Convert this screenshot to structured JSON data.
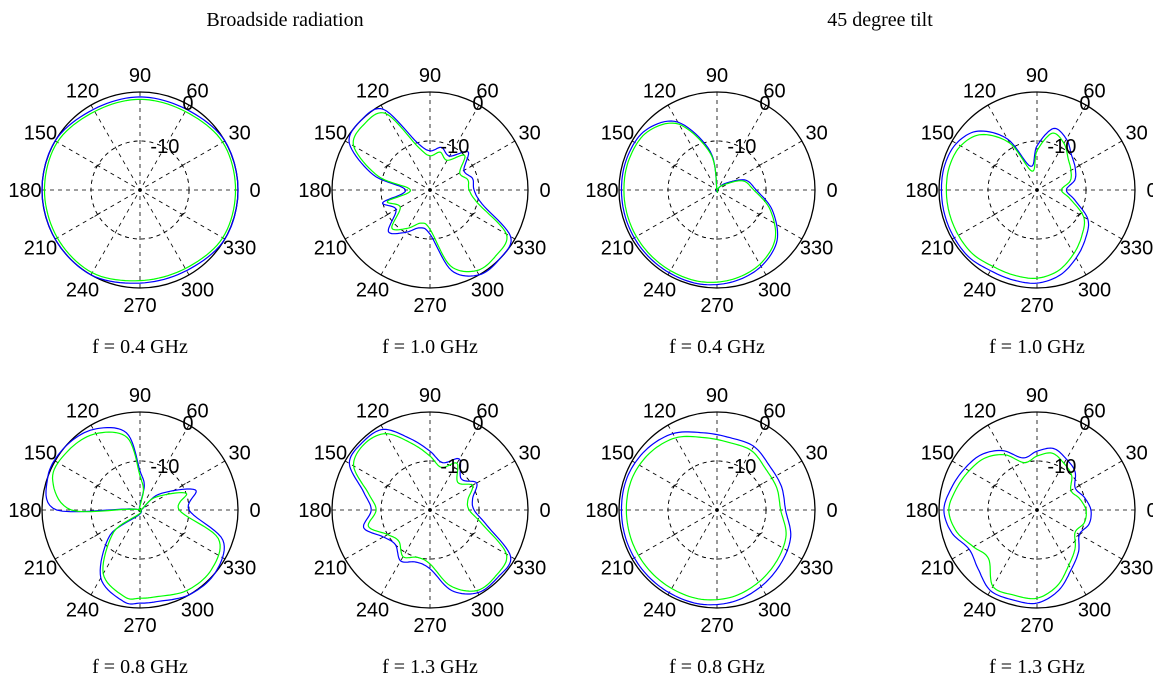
{
  "group_titles": {
    "broadside": "Broadside radiation",
    "tilt": "45 degree tilt"
  },
  "chart_data": [
    {
      "type": "polar",
      "caption": "f = 0.4 GHz",
      "angle_labels": [
        "0",
        "30",
        "60",
        "90",
        "120",
        "150",
        "180",
        "210",
        "240",
        "270",
        "300",
        "330"
      ],
      "radial_labels": [
        "-10",
        "0"
      ],
      "rlim": [
        -20,
        0
      ],
      "grid": true,
      "series": [
        {
          "color": "#0000ff",
          "angles": [
            0,
            30,
            60,
            90,
            120,
            150,
            180,
            210,
            240,
            270,
            300,
            330,
            360
          ],
          "values": [
            0,
            0,
            -1,
            -1,
            -1,
            0,
            0,
            0,
            0,
            -1,
            -1,
            0,
            0
          ]
        },
        {
          "color": "#00ff00",
          "angles": [
            0,
            30,
            60,
            90,
            120,
            150,
            180,
            210,
            240,
            270,
            300,
            330,
            360
          ],
          "values": [
            -0.5,
            -0.5,
            -1.5,
            -1.5,
            -1.5,
            -0.5,
            -0.5,
            -0.5,
            -0.5,
            -1.5,
            -1.5,
            -0.5,
            -0.5
          ]
        }
      ]
    },
    {
      "type": "polar",
      "caption": "f = 1.0 GHz",
      "angle_labels": [
        "0",
        "30",
        "60",
        "90",
        "120",
        "150",
        "180",
        "210",
        "240",
        "270",
        "300",
        "330"
      ],
      "radial_labels": [
        "-10",
        "0"
      ],
      "rlim": [
        -20,
        0
      ],
      "grid": true,
      "series": [
        {
          "color": "#0000ff",
          "angles": [
            0,
            15,
            30,
            45,
            60,
            75,
            90,
            105,
            120,
            135,
            150,
            165,
            180,
            195,
            210,
            225,
            240,
            255,
            270,
            285,
            300,
            315,
            330,
            345,
            360
          ],
          "values": [
            -11,
            -11,
            -12,
            -9,
            -12,
            -11,
            -12,
            -10,
            -1,
            0,
            -1,
            -8,
            -15,
            -10,
            -12,
            -8,
            -10,
            -12,
            -11,
            -3,
            0,
            0,
            -1,
            -9,
            -11
          ]
        },
        {
          "color": "#00ff00",
          "angles": [
            0,
            15,
            30,
            45,
            60,
            75,
            90,
            105,
            120,
            135,
            150,
            165,
            180,
            195,
            210,
            225,
            240,
            255,
            270,
            285,
            300,
            315,
            330,
            345,
            360
          ],
          "values": [
            -12,
            -12,
            -13,
            -10,
            -13,
            -12,
            -13,
            -11,
            -2,
            -1,
            -2,
            -9,
            -16,
            -11,
            -13,
            -9,
            -11,
            -13,
            -12,
            -4,
            -1,
            -1,
            -2,
            -10,
            -12
          ]
        }
      ]
    },
    {
      "type": "polar",
      "caption": "f = 0.4 GHz",
      "angle_labels": [
        "0",
        "30",
        "60",
        "90",
        "120",
        "150",
        "180",
        "210",
        "240",
        "270",
        "300",
        "330"
      ],
      "radial_labels": [
        "-10",
        "0"
      ],
      "rlim": [
        -20,
        0
      ],
      "grid": true,
      "series": [
        {
          "color": "#0000ff",
          "angles": [
            0,
            20,
            40,
            60,
            80,
            90,
            100,
            120,
            140,
            160,
            180,
            200,
            220,
            240,
            260,
            280,
            300,
            320,
            340,
            360
          ],
          "values": [
            -12,
            -14,
            -18,
            -20,
            -20,
            -20,
            -12,
            -4,
            -1,
            -0.5,
            -0.5,
            -0.5,
            -0.5,
            -0.5,
            -0.5,
            -1,
            -2,
            -4,
            -8,
            -12
          ]
        },
        {
          "color": "#00ff00",
          "angles": [
            0,
            20,
            40,
            60,
            80,
            90,
            100,
            120,
            140,
            160,
            180,
            200,
            220,
            240,
            260,
            280,
            300,
            320,
            340,
            360
          ],
          "values": [
            -12.5,
            -14.5,
            -18.5,
            -20,
            -20,
            -20,
            -12.5,
            -4.5,
            -1.5,
            -1,
            -1,
            -1,
            -1,
            -1,
            -1,
            -1.5,
            -2.5,
            -4.5,
            -8.5,
            -12.5
          ]
        }
      ]
    },
    {
      "type": "polar",
      "caption": "f = 1.0 GHz",
      "angle_labels": [
        "0",
        "30",
        "60",
        "90",
        "120",
        "150",
        "180",
        "210",
        "240",
        "270",
        "300",
        "330"
      ],
      "radial_labels": [
        "-10",
        "0"
      ],
      "rlim": [
        -20,
        0
      ],
      "grid": true,
      "series": [
        {
          "color": "#0000ff",
          "angles": [
            0,
            15,
            30,
            45,
            60,
            75,
            90,
            105,
            120,
            135,
            150,
            165,
            180,
            195,
            210,
            225,
            240,
            255,
            270,
            285,
            300,
            315,
            330,
            345,
            360
          ],
          "values": [
            -14,
            -12,
            -11,
            -10,
            -8,
            -7,
            -11,
            -15,
            -8,
            -3,
            -1,
            -0.5,
            -0.5,
            -0.5,
            -0.5,
            -0.5,
            -1,
            -1,
            -1,
            -2,
            -4,
            -6,
            -8,
            -12,
            -14
          ]
        },
        {
          "color": "#00ff00",
          "angles": [
            0,
            15,
            30,
            45,
            60,
            75,
            90,
            105,
            120,
            135,
            150,
            165,
            180,
            195,
            210,
            225,
            240,
            255,
            270,
            285,
            300,
            315,
            330,
            345,
            360
          ],
          "values": [
            -15,
            -13,
            -12,
            -11,
            -9,
            -8,
            -12,
            -16,
            -9,
            -4,
            -2,
            -1.5,
            -1.5,
            -1.5,
            -1.5,
            -1.5,
            -2,
            -2,
            -2,
            -3,
            -5,
            -7,
            -9,
            -13,
            -15
          ]
        }
      ]
    },
    {
      "type": "polar",
      "caption": "f = 0.8 GHz",
      "angle_labels": [
        "0",
        "30",
        "60",
        "90",
        "120",
        "150",
        "180",
        "210",
        "240",
        "270",
        "300",
        "330"
      ],
      "radial_labels": [
        "-10",
        "0"
      ],
      "rlim": [
        -20,
        0
      ],
      "grid": true,
      "series": [
        {
          "color": "#0000ff",
          "angles": [
            0,
            20,
            40,
            60,
            80,
            90,
            100,
            120,
            140,
            160,
            180,
            200,
            220,
            240,
            260,
            270,
            280,
            300,
            320,
            340,
            360
          ],
          "values": [
            -10,
            -8,
            -15,
            -20,
            -15,
            -12,
            -4,
            -1,
            0,
            0,
            -3,
            -20,
            -12,
            -4,
            -1,
            -1,
            -1,
            0,
            0,
            -2,
            -10
          ]
        },
        {
          "color": "#00ff00",
          "angles": [
            0,
            20,
            40,
            60,
            80,
            90,
            100,
            120,
            140,
            160,
            180,
            200,
            220,
            240,
            260,
            270,
            280,
            300,
            320,
            340,
            360
          ],
          "values": [
            -12,
            -10,
            -16,
            -20,
            -16,
            -13,
            -5,
            -2,
            -1,
            -1,
            -6,
            -20,
            -13,
            -5,
            -2,
            -2,
            -2,
            -1,
            -1,
            -3,
            -12
          ]
        }
      ]
    },
    {
      "type": "polar",
      "caption": "f = 1.3 GHz",
      "angle_labels": [
        "0",
        "30",
        "60",
        "90",
        "120",
        "150",
        "180",
        "210",
        "240",
        "270",
        "300",
        "330"
      ],
      "radial_labels": [
        "-10",
        "0"
      ],
      "rlim": [
        -20,
        0
      ],
      "grid": true,
      "series": [
        {
          "color": "#0000ff",
          "angles": [
            0,
            15,
            30,
            45,
            60,
            75,
            90,
            105,
            120,
            135,
            150,
            165,
            180,
            195,
            210,
            225,
            240,
            255,
            270,
            285,
            300,
            315,
            330,
            345,
            360
          ],
          "values": [
            -11,
            -11,
            -9,
            -11,
            -8,
            -10,
            -8,
            -5,
            -1,
            -0.5,
            -1,
            -6,
            -8,
            -6,
            -9,
            -10,
            -8,
            -9,
            -8,
            -3,
            -0.5,
            -0.5,
            -1,
            -8,
            -11
          ]
        },
        {
          "color": "#00ff00",
          "angles": [
            0,
            15,
            30,
            45,
            60,
            75,
            90,
            105,
            120,
            135,
            150,
            165,
            180,
            195,
            210,
            225,
            240,
            255,
            270,
            285,
            300,
            315,
            330,
            345,
            360
          ],
          "values": [
            -12,
            -12,
            -10,
            -12,
            -9,
            -11,
            -9,
            -6,
            -2,
            -1,
            -2,
            -7,
            -9,
            -7,
            -10,
            -11,
            -9,
            -10,
            -9,
            -4,
            -1,
            -1,
            -2,
            -9,
            -12
          ]
        }
      ]
    },
    {
      "type": "polar",
      "caption": "f = 0.8 GHz",
      "angle_labels": [
        "0",
        "30",
        "60",
        "90",
        "120",
        "150",
        "180",
        "210",
        "240",
        "270",
        "300",
        "330"
      ],
      "radial_labels": [
        "-10",
        "0"
      ],
      "rlim": [
        -20,
        0
      ],
      "grid": true,
      "series": [
        {
          "color": "#0000ff",
          "angles": [
            0,
            20,
            40,
            60,
            80,
            100,
            120,
            140,
            160,
            180,
            200,
            220,
            240,
            260,
            280,
            300,
            320,
            340,
            360
          ],
          "values": [
            -6,
            -6,
            -6,
            -5,
            -5,
            -4,
            -2,
            -1,
            -0.5,
            -0.5,
            -0.5,
            -0.5,
            -0.5,
            -0.5,
            -1,
            -2,
            -3,
            -4,
            -6
          ]
        },
        {
          "color": "#00ff00",
          "angles": [
            0,
            20,
            40,
            60,
            80,
            100,
            120,
            140,
            160,
            180,
            200,
            220,
            240,
            260,
            280,
            300,
            320,
            340,
            360
          ],
          "values": [
            -7,
            -7,
            -7,
            -6,
            -6,
            -5,
            -3,
            -2,
            -1.5,
            -1.5,
            -1.5,
            -1.5,
            -1.5,
            -1.5,
            -2,
            -3,
            -4,
            -5,
            -7
          ]
        }
      ]
    },
    {
      "type": "polar",
      "caption": "f = 1.3 GHz",
      "angle_labels": [
        "0",
        "30",
        "60",
        "90",
        "120",
        "150",
        "180",
        "210",
        "240",
        "270",
        "300",
        "330"
      ],
      "radial_labels": [
        "-10",
        "0"
      ],
      "rlim": [
        -20,
        0
      ],
      "grid": true,
      "series": [
        {
          "color": "#0000ff",
          "angles": [
            0,
            15,
            30,
            45,
            60,
            75,
            90,
            105,
            120,
            135,
            150,
            165,
            180,
            195,
            210,
            225,
            240,
            255,
            270,
            285,
            300,
            315,
            330,
            345,
            360
          ],
          "values": [
            -9,
            -10,
            -11,
            -9,
            -8,
            -7,
            -8,
            -9,
            -6,
            -4,
            -3,
            -2,
            -1,
            -2,
            -4,
            -3,
            -1,
            -1,
            -1,
            -3,
            -6,
            -8,
            -10,
            -9,
            -9
          ]
        },
        {
          "color": "#00ff00",
          "angles": [
            0,
            15,
            30,
            45,
            60,
            75,
            90,
            105,
            120,
            135,
            150,
            165,
            180,
            195,
            210,
            225,
            240,
            255,
            270,
            285,
            300,
            315,
            330,
            345,
            360
          ],
          "values": [
            -10,
            -11,
            -12,
            -10,
            -9,
            -8,
            -9,
            -10,
            -7,
            -5,
            -4,
            -3,
            -2,
            -3,
            -5,
            -6,
            -2,
            -2,
            -2,
            -4,
            -7,
            -9,
            -11,
            -10,
            -10
          ]
        }
      ]
    }
  ]
}
